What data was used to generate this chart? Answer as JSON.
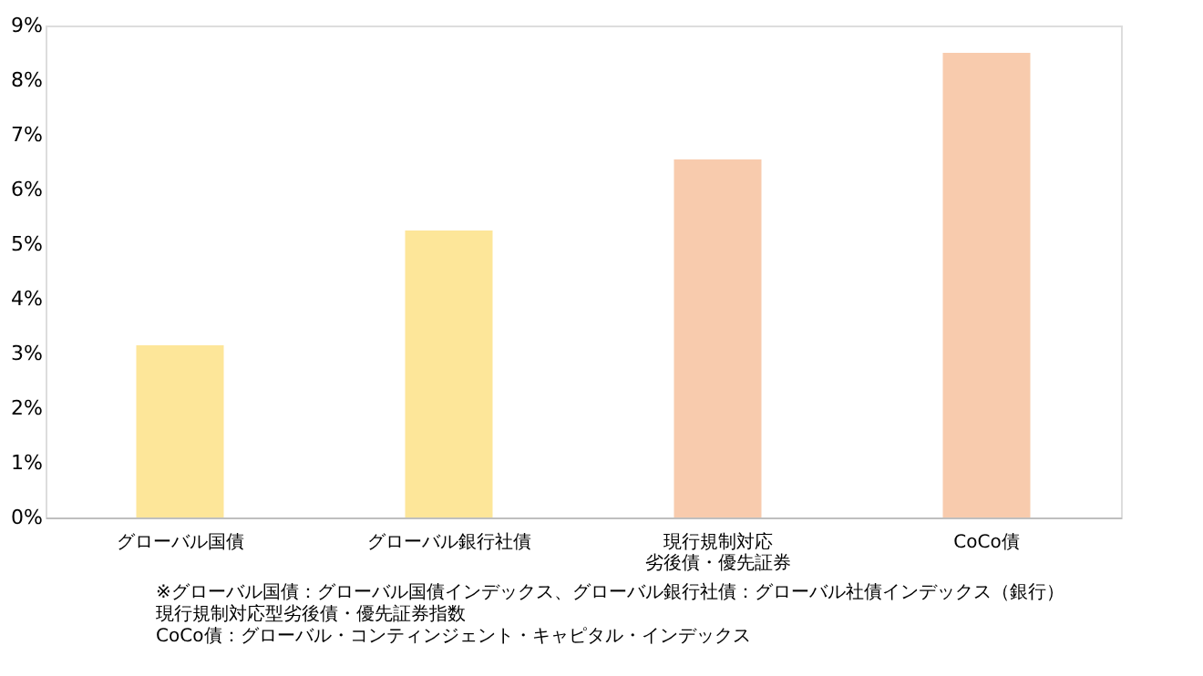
{
  "chart_data": {
    "type": "bar",
    "categories": [
      "グローバル国債",
      "グローバル銀行社債",
      "現行規制対応",
      "CoCo債"
    ],
    "values": [
      3.15,
      5.25,
      6.55,
      8.5
    ],
    "colors": [
      "#fde699",
      "#fde699",
      "#f8cbad",
      "#f8cbad"
    ],
    "ylim": [
      0,
      9
    ],
    "yticks": [
      {
        "value": 0,
        "label": "0%"
      },
      {
        "value": 1,
        "label": "1%"
      },
      {
        "value": 2,
        "label": "2%"
      },
      {
        "value": 3,
        "label": "3%"
      },
      {
        "value": 4,
        "label": "4%"
      },
      {
        "value": 5,
        "label": "5%"
      },
      {
        "value": 6,
        "label": "6%"
      },
      {
        "value": 7,
        "label": "7%"
      },
      {
        "value": 8,
        "label": "8%"
      },
      {
        "value": 9,
        "label": "9%"
      }
    ],
    "grid": false,
    "annotations": [
      "劣後債・優先証券",
      "※グローバル国債：グローバル国債インデックス、グローバル銀行社債：グローバル社債インデックス（銀行）",
      "現行規制対応型劣後債・優先証券指数",
      "CoCo債：グローバル・コンティンジェント・キャピタル・インデックス"
    ]
  }
}
